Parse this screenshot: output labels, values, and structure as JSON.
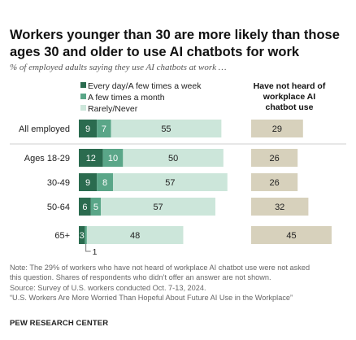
{
  "header": {
    "title_line1": "Workers younger than 30 are more likely than those",
    "title_line2": "ages 30 and older to use AI chatbots for work",
    "subtitle": "% of employed adults saying they use AI chatbots at work …"
  },
  "chart_data": {
    "type": "bar",
    "orientation": "horizontal",
    "stacked": true,
    "categories": [
      "All employed",
      "Ages 18-29",
      "30-49",
      "50-64",
      "65+"
    ],
    "series": [
      {
        "name": "Every day/A few times a week",
        "values": [
          9,
          12,
          9,
          6,
          3
        ],
        "color": "#2b6b4f"
      },
      {
        "name": "A few times a month",
        "values": [
          7,
          10,
          8,
          5,
          1
        ],
        "color": "#5aa688"
      },
      {
        "name": "Rarely/Never",
        "values": [
          55,
          50,
          57,
          57,
          48
        ],
        "color": "#cce6da"
      }
    ],
    "side_column": {
      "title_lines": [
        "Have not heard of",
        "workplace AI",
        "chatbot use"
      ],
      "values": [
        29,
        26,
        26,
        32,
        45
      ],
      "color": "#d7d1bc"
    },
    "annotations": [
      {
        "category": "65+",
        "series": "A few times a month",
        "text": "1"
      }
    ],
    "legend_position": "top-left",
    "grid": false
  },
  "notes": {
    "line1": "Note: The 29% of workers who have not heard of workplace AI chatbot use were not asked",
    "line2": "this question. Shares of respondents who didn’t offer an answer are not shown.",
    "line3": "Source: Survey of U.S. workers conducted Oct. 7-13, 2024.",
    "line4": "“U.S. Workers Are More Worried Than Hopeful About Future AI Use in the Workplace”"
  },
  "footer": {
    "org": "PEW RESEARCH CENTER"
  },
  "colors": {
    "dark_green": "#2b6b4f",
    "mid_green": "#5aa688",
    "light_green": "#cce6da",
    "tan": "#d7d1bc"
  }
}
